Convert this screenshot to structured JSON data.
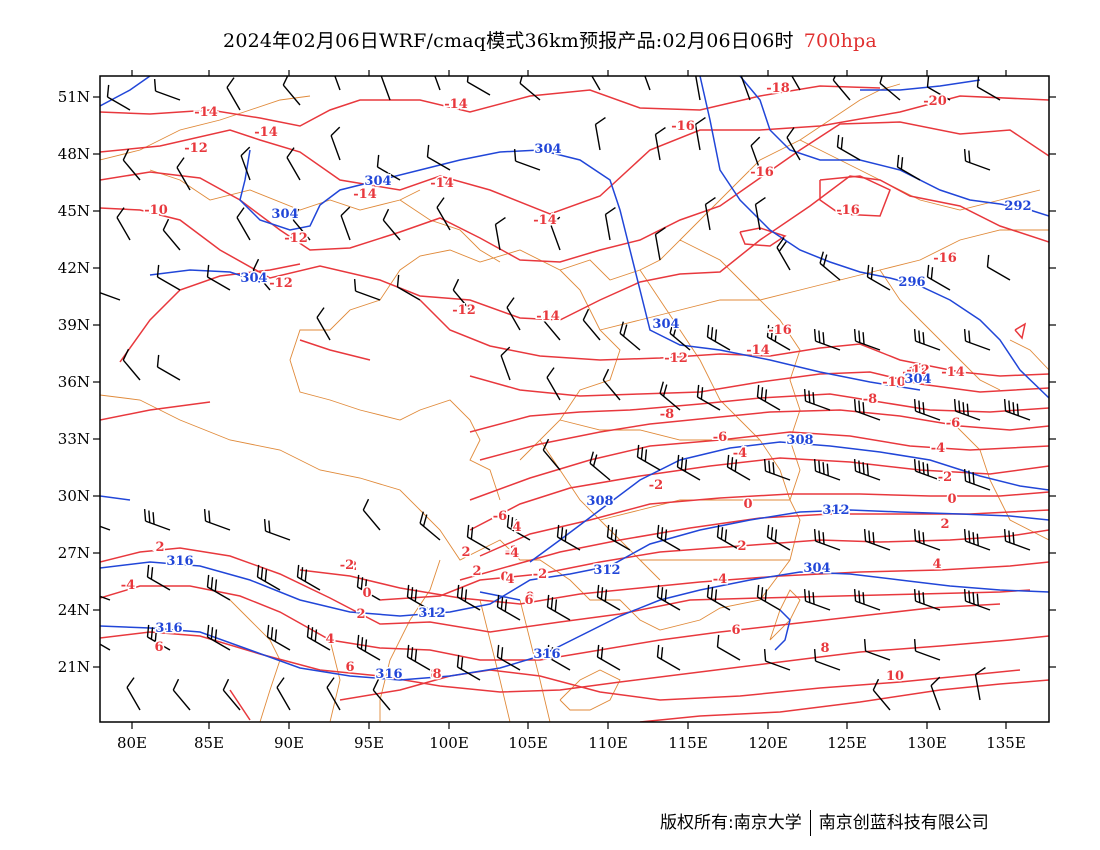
{
  "title": {
    "text": "2024年02月06日WRF/cmaq模式36km预报产品:02月06日06时",
    "level": "700hpa"
  },
  "footer": {
    "left": "版权所有:南京大学",
    "right": "南京创蓝科技有限公司"
  },
  "colors": {
    "temperature": "#e8383d",
    "height": "#2146d8",
    "border": "#e08a3a",
    "wind": "#000000"
  },
  "axes": {
    "lon_ticks": [
      "80E",
      "85E",
      "90E",
      "95E",
      "100E",
      "105E",
      "110E",
      "115E",
      "120E",
      "125E",
      "130E",
      "135E"
    ],
    "lat_ticks": [
      "51N",
      "48N",
      "45N",
      "42N",
      "39N",
      "36N",
      "33N",
      "30N",
      "27N",
      "24N",
      "21N"
    ]
  },
  "temp_labels": [
    "-14",
    "-14",
    "-14",
    "-12",
    "-10",
    "-14",
    "-14",
    "-14",
    "-12",
    "-12",
    "-12",
    "-14",
    "-12",
    "-16",
    "-16",
    "-16",
    "-18",
    "-20",
    "-16",
    "-16",
    "-14",
    "-12",
    "-10",
    "-8",
    "-6",
    "-4",
    "-2",
    "0",
    "2",
    "-12",
    "-14",
    "-8",
    "-6",
    "-4",
    "-2",
    "0",
    "-2",
    "2",
    "4",
    "-6",
    "-4",
    "-2",
    "0",
    "2",
    "-2",
    "2",
    "4",
    "-4",
    "4",
    "6",
    "8",
    "10",
    "8",
    "6",
    "4",
    "2",
    "0",
    "-2",
    "6",
    "-4",
    "-2",
    "0",
    "2",
    "4",
    "6",
    "8",
    "-2",
    "2",
    "4",
    "6",
    "8"
  ],
  "height_labels": [
    "304",
    "304",
    "304",
    "304",
    "304",
    "296",
    "292",
    "304",
    "308",
    "308",
    "312",
    "312",
    "312",
    "316",
    "316",
    "316",
    "316",
    "304"
  ]
}
